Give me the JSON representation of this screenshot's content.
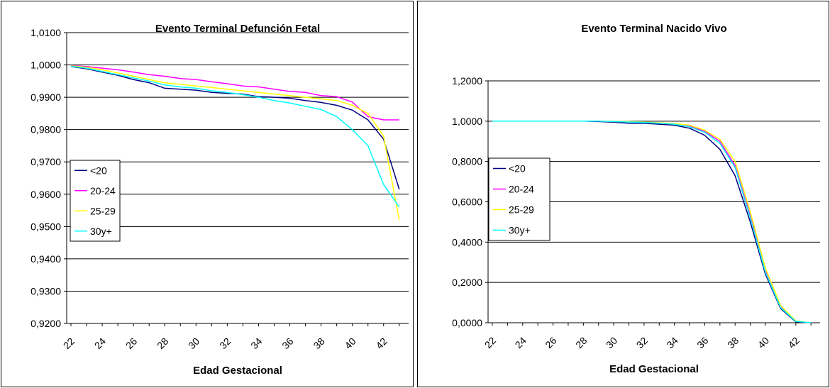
{
  "chart_data": [
    {
      "type": "line",
      "title": "Evento Terminal Defunción Fetal",
      "xlabel": "Edad Gestacional",
      "ylabel": "",
      "x": [
        22,
        23,
        24,
        25,
        26,
        27,
        28,
        29,
        30,
        31,
        32,
        33,
        34,
        35,
        36,
        37,
        38,
        39,
        40,
        41,
        42,
        43
      ],
      "x_ticks": [
        "22",
        "24",
        "26",
        "28",
        "30",
        "32",
        "34",
        "36",
        "38",
        "40",
        "42"
      ],
      "ylim": [
        0.92,
        1.01
      ],
      "y_ticks": [
        "0,9200",
        "0,9300",
        "0,9400",
        "0,9500",
        "0,9600",
        "0,9700",
        "0,9800",
        "0,9900",
        "1,0000",
        "1,0100"
      ],
      "grid": "horizontal",
      "legend": "left",
      "series": [
        {
          "name": "<20",
          "color": "#000080",
          "values": [
            0.9995,
            0.9988,
            0.9978,
            0.9968,
            0.9955,
            0.9945,
            0.9928,
            0.9925,
            0.9922,
            0.9915,
            0.9912,
            0.991,
            0.9902,
            0.99,
            0.9897,
            0.989,
            0.9884,
            0.9875,
            0.986,
            0.983,
            0.977,
            0.9615
          ]
        },
        {
          "name": "20-24",
          "color": "#ff00ff",
          "values": [
            0.9998,
            0.9995,
            0.999,
            0.9985,
            0.9978,
            0.997,
            0.9965,
            0.9958,
            0.9955,
            0.9948,
            0.9942,
            0.9935,
            0.9932,
            0.9925,
            0.9918,
            0.9915,
            0.9905,
            0.9902,
            0.9885,
            0.984,
            0.983,
            0.983
          ]
        },
        {
          "name": "25-29",
          "color": "#ffff00",
          "values": [
            0.9997,
            0.9993,
            0.9985,
            0.9975,
            0.9965,
            0.9955,
            0.9945,
            0.994,
            0.9935,
            0.993,
            0.9925,
            0.992,
            0.9915,
            0.991,
            0.9905,
            0.99,
            0.9895,
            0.989,
            0.9875,
            0.985,
            0.978,
            0.952
          ]
        },
        {
          "name": "30y+",
          "color": "#00ffff",
          "values": [
            0.9996,
            0.999,
            0.998,
            0.997,
            0.996,
            0.995,
            0.9938,
            0.9932,
            0.9928,
            0.992,
            0.9915,
            0.9908,
            0.99,
            0.989,
            0.9882,
            0.9872,
            0.9862,
            0.984,
            0.98,
            0.975,
            0.963,
            0.956
          ]
        }
      ]
    },
    {
      "type": "line",
      "title": "Evento Terminal Nacido Vivo",
      "xlabel": "Edad Gestacional",
      "ylabel": "",
      "x": [
        22,
        23,
        24,
        25,
        26,
        27,
        28,
        29,
        30,
        31,
        32,
        33,
        34,
        35,
        36,
        37,
        38,
        39,
        40,
        41,
        42,
        43
      ],
      "x_ticks": [
        "22",
        "24",
        "26",
        "28",
        "30",
        "32",
        "34",
        "36",
        "38",
        "40",
        "42"
      ],
      "ylim": [
        0,
        1.2
      ],
      "y_ticks": [
        "0,0000",
        "0,2000",
        "0,4000",
        "0,6000",
        "0,8000",
        "1,0000",
        "1,2000"
      ],
      "grid": "horizontal",
      "legend": "left",
      "series": [
        {
          "name": "<20",
          "color": "#000080",
          "values": [
            1.0,
            1.0,
            1.0,
            1.0,
            1.0,
            1.0,
            1.0,
            0.998,
            0.995,
            0.99,
            0.99,
            0.985,
            0.98,
            0.965,
            0.93,
            0.86,
            0.73,
            0.5,
            0.24,
            0.07,
            0.005,
            0.0
          ]
        },
        {
          "name": "20-24",
          "color": "#ff00ff",
          "values": [
            1.0,
            1.0,
            1.0,
            1.0,
            1.0,
            1.0,
            1.0,
            1.0,
            0.998,
            0.997,
            0.995,
            0.99,
            0.985,
            0.975,
            0.95,
            0.9,
            0.78,
            0.53,
            0.26,
            0.08,
            0.008,
            0.0
          ]
        },
        {
          "name": "25-29",
          "color": "#ffff00",
          "values": [
            1.0,
            1.0,
            1.0,
            1.0,
            1.0,
            1.0,
            1.0,
            1.0,
            0.999,
            0.998,
            0.996,
            0.992,
            0.988,
            0.98,
            0.955,
            0.91,
            0.8,
            0.55,
            0.27,
            0.085,
            0.01,
            0.0
          ]
        },
        {
          "name": "30y+",
          "color": "#00ffff",
          "values": [
            1.0,
            1.0,
            1.0,
            1.0,
            1.0,
            1.0,
            1.0,
            1.0,
            0.998,
            0.996,
            0.994,
            0.99,
            0.985,
            0.972,
            0.945,
            0.89,
            0.77,
            0.52,
            0.25,
            0.075,
            0.007,
            0.0
          ]
        }
      ]
    }
  ]
}
